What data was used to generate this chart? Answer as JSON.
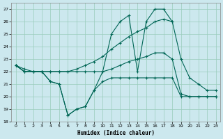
{
  "xlabel": "Humidex (Indice chaleur)",
  "bg_color": "#cce8ee",
  "grid_color": "#99ccbb",
  "line_color": "#006655",
  "xlim": [
    -0.5,
    23.5
  ],
  "ylim": [
    18,
    27.5
  ],
  "xticks": [
    0,
    1,
    2,
    3,
    4,
    5,
    6,
    7,
    8,
    9,
    10,
    11,
    12,
    13,
    14,
    15,
    16,
    17,
    18,
    19,
    20,
    21,
    22,
    23
  ],
  "yticks": [
    18,
    19,
    20,
    21,
    22,
    23,
    24,
    25,
    26,
    27
  ],
  "line1_x": [
    0,
    1,
    2,
    3,
    4,
    5,
    6,
    7,
    8,
    9,
    10,
    11,
    12,
    13,
    14,
    15,
    16,
    17,
    18,
    19,
    20,
    21,
    22,
    23
  ],
  "line1_y": [
    22.5,
    22.0,
    22.0,
    22.0,
    21.2,
    21.0,
    18.5,
    19.0,
    19.2,
    20.5,
    21.2,
    21.5,
    21.5,
    21.5,
    21.5,
    21.5,
    21.5,
    21.5,
    21.5,
    20.0,
    20.0,
    20.0,
    20.0,
    20.0
  ],
  "line2_x": [
    0,
    1,
    2,
    3,
    4,
    5,
    6,
    7,
    8,
    9,
    10,
    11,
    12,
    13,
    14,
    15,
    16,
    17,
    18,
    19,
    20,
    21,
    22,
    23
  ],
  "line2_y": [
    22.5,
    22.0,
    22.0,
    22.0,
    21.2,
    21.0,
    18.5,
    19.0,
    19.2,
    20.5,
    22.0,
    25.0,
    26.0,
    26.5,
    22.0,
    26.0,
    27.0,
    27.0,
    26.0,
    23.0,
    21.5,
    21.0,
    20.5,
    20.5
  ],
  "line3_x": [
    0,
    1,
    2,
    3,
    4,
    5,
    6,
    7,
    8,
    9,
    10,
    11,
    12,
    13,
    14,
    15,
    16,
    17,
    18
  ],
  "line3_y": [
    22.5,
    22.2,
    22.0,
    22.0,
    22.0,
    22.0,
    22.0,
    22.2,
    22.5,
    22.8,
    23.2,
    23.8,
    24.3,
    24.8,
    25.2,
    25.5,
    26.0,
    26.2,
    26.0
  ],
  "line4_x": [
    0,
    1,
    2,
    3,
    4,
    5,
    6,
    7,
    8,
    9,
    10,
    11,
    12,
    13,
    14,
    15,
    16,
    17,
    18,
    19,
    20,
    21,
    22,
    23
  ],
  "line4_y": [
    22.5,
    22.0,
    22.0,
    22.0,
    22.0,
    22.0,
    22.0,
    22.0,
    22.0,
    22.0,
    22.0,
    22.2,
    22.5,
    22.8,
    23.0,
    23.2,
    23.5,
    23.5,
    23.0,
    20.2,
    20.0,
    20.0,
    20.0,
    20.0
  ]
}
